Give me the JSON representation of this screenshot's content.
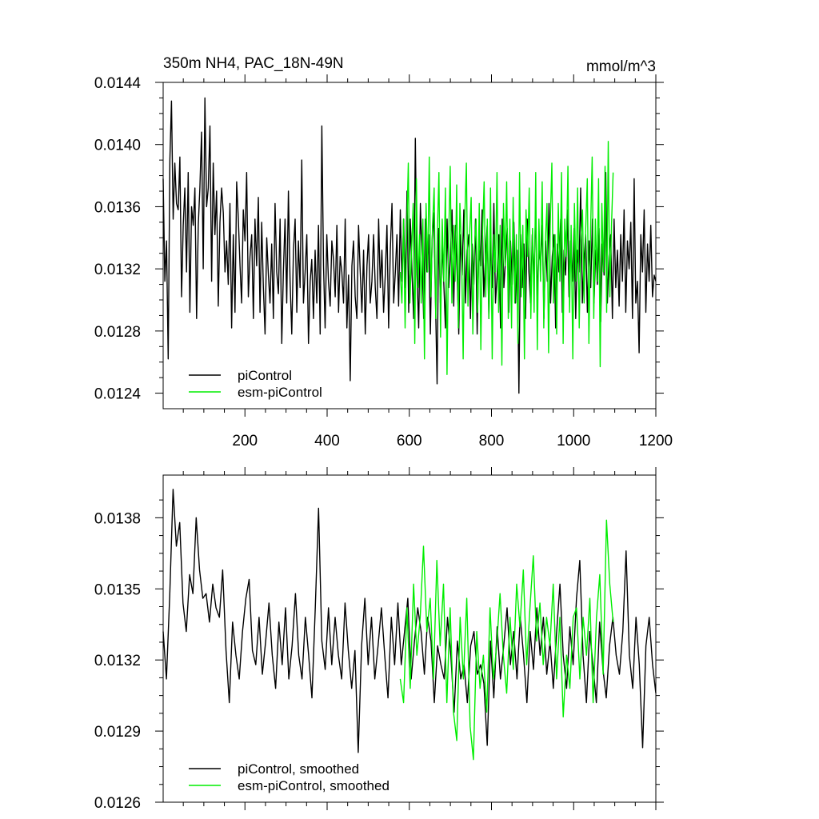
{
  "chart_data": [
    {
      "type": "line",
      "title_left": "350m NH4, PAC_18N-49N",
      "title_right": "mmol/m^3",
      "xlim": [
        1,
        1200
      ],
      "ylim": [
        0.0123,
        0.0144
      ],
      "x_ticks": [
        200,
        400,
        600,
        800,
        1000,
        1200
      ],
      "x_tick_labels": [
        "200",
        "400",
        "600",
        "800",
        "1000",
        "1200"
      ],
      "y_ticks": [
        0.0124,
        0.0128,
        0.0132,
        0.0136,
        0.014,
        0.0144
      ],
      "y_tick_labels": [
        "0.0124",
        "0.0128",
        "0.0132",
        "0.0136",
        "0.0140",
        "0.0144"
      ],
      "legend_position": "bottom-left",
      "series": [
        {
          "name": "piControl",
          "color": "#000000",
          "x_range": [
            1,
            1200
          ],
          "sample_step": 4,
          "values": [
            0.01378,
            0.01312,
            0.01338,
            0.01262,
            0.0139,
            0.01428,
            0.01352,
            0.01388,
            0.01362,
            0.01358,
            0.01392,
            0.01302,
            0.01348,
            0.01372,
            0.01318,
            0.01382,
            0.01292,
            0.0136,
            0.01348,
            0.01372,
            0.01288,
            0.01348,
            0.01372,
            0.01408,
            0.0132,
            0.0143,
            0.0136,
            0.01372,
            0.01412,
            0.01312,
            0.01388,
            0.01342,
            0.0137,
            0.01296,
            0.0135,
            0.01372,
            0.01356,
            0.01318,
            0.01338,
            0.0131,
            0.01362,
            0.01282,
            0.01342,
            0.01292,
            0.01376,
            0.01352,
            0.01322,
            0.01298,
            0.01358,
            0.01338,
            0.01382,
            0.01302,
            0.01328,
            0.01342,
            0.01288,
            0.01352,
            0.01322,
            0.01366,
            0.01292,
            0.0135,
            0.01308,
            0.01278,
            0.0134,
            0.01316,
            0.01298,
            0.01336,
            0.01288,
            0.01362,
            0.01318,
            0.01304,
            0.01352,
            0.01272,
            0.01318,
            0.01352,
            0.01298,
            0.0137,
            0.01312,
            0.01278,
            0.01332,
            0.01352,
            0.01292,
            0.01338,
            0.01308,
            0.0139,
            0.01298,
            0.01318,
            0.01342,
            0.01272,
            0.01312,
            0.01326,
            0.01288,
            0.01332,
            0.01298,
            0.01348,
            0.01278,
            0.01412,
            0.01322,
            0.01282,
            0.01342,
            0.01312,
            0.01296,
            0.01338,
            0.01326,
            0.01302,
            0.01348,
            0.01292,
            0.01328,
            0.01318,
            0.01298,
            0.01352,
            0.01282,
            0.01316,
            0.01248,
            0.01322,
            0.01338,
            0.01302,
            0.01288,
            0.01348,
            0.01318,
            0.01292,
            0.01332,
            0.01278,
            0.01322,
            0.01342,
            0.01298,
            0.01312,
            0.01342,
            0.01308,
            0.01288,
            0.01352,
            0.01308,
            0.01332,
            0.01292,
            0.01316,
            0.01348,
            0.01282,
            0.01332,
            0.01362,
            0.01298,
            0.01318,
            0.01342,
            0.01296,
            0.01358,
            0.01312,
            0.01352,
            0.01308,
            0.0137,
            0.01292,
            0.01352,
            0.01318,
            0.01288,
            0.01404,
            0.01316,
            0.01282,
            0.01362,
            0.01328,
            0.01288,
            0.01352,
            0.01318,
            0.01342,
            0.01278,
            0.01338,
            0.01356,
            0.01302,
            0.01246,
            0.01346,
            0.01298,
            0.01336,
            0.01312,
            0.01282,
            0.01352,
            0.01308,
            0.0133,
            0.01358,
            0.01296,
            0.01348,
            0.01318,
            0.01278,
            0.01342,
            0.01316,
            0.01358,
            0.01298,
            0.01332,
            0.01342,
            0.01288,
            0.01336,
            0.0131,
            0.01352,
            0.01278,
            0.01332,
            0.01322,
            0.01358,
            0.01302,
            0.01328,
            0.01348,
            0.01288,
            0.01338,
            0.01308,
            0.01362,
            0.01298,
            0.01316,
            0.01342,
            0.01282,
            0.01352,
            0.01308,
            0.01326,
            0.01346,
            0.01292,
            0.01338,
            0.0131,
            0.0135,
            0.01298,
            0.01332,
            0.0124,
            0.01342,
            0.01308,
            0.01336,
            0.01288,
            0.01352,
            0.01318,
            0.01298,
            0.01342,
            0.01312,
            0.01358,
            0.01302,
            0.01332,
            0.01322,
            0.01348,
            0.01288,
            0.01338,
            0.01312,
            0.01362,
            0.01298,
            0.01328,
            0.01342,
            0.01282,
            0.01336,
            0.01318,
            0.01352,
            0.01292,
            0.01332,
            0.01316,
            0.01358,
            0.01302,
            0.01338,
            0.01312,
            0.01346,
            0.01288,
            0.01332,
            0.01318,
            0.01372,
            0.01298,
            0.01326,
            0.01342,
            0.01292,
            0.01338,
            0.01308,
            0.01352,
            0.01298,
            0.01332,
            0.0131,
            0.01346,
            0.01286,
            0.01336,
            0.01316,
            0.01382,
            0.01298,
            0.01328,
            0.01342,
            0.01288,
            0.01352,
            0.01308,
            0.01332,
            0.01296,
            0.01342,
            0.01312,
            0.01358,
            0.01292,
            0.01338,
            0.0132,
            0.0135,
            0.01288,
            0.01378,
            0.01298,
            0.01312,
            0.01266,
            0.01342,
            0.01318,
            0.01358,
            0.01292,
            0.01336,
            0.01312,
            0.01348,
            0.01302,
            0.01316,
            0.01312
          ]
        },
        {
          "name": "esm-piControl",
          "color": "#00ee00",
          "x_range": [
            578,
            1096
          ],
          "sample_step": 4,
          "values": [
            0.01318,
            0.01298,
            0.01352,
            0.01282,
            0.01342,
            0.01388,
            0.01298,
            0.01332,
            0.01362,
            0.01272,
            0.01378,
            0.01308,
            0.01342,
            0.01298,
            0.01352,
            0.01262,
            0.01362,
            0.01318,
            0.01392,
            0.01302,
            0.01348,
            0.01372,
            0.01288,
            0.01342,
            0.01382,
            0.01276,
            0.01352,
            0.01312,
            0.01372,
            0.01252,
            0.01338,
            0.01386,
            0.01298,
            0.01348,
            0.01312,
            0.01374,
            0.01282,
            0.01362,
            0.01332,
            0.01262,
            0.01352,
            0.01388,
            0.01296,
            0.01342,
            0.01366,
            0.01278,
            0.01332,
            0.01352,
            0.01292,
            0.01362,
            0.01268,
            0.01342,
            0.01376,
            0.01302,
            0.01352,
            0.01288,
            0.01372,
            0.01262,
            0.01342,
            0.01318,
            0.01382,
            0.01292,
            0.01348,
            0.01258,
            0.01362,
            0.01322,
            0.01376,
            0.01288,
            0.01352,
            0.01282,
            0.01366,
            0.01298,
            0.01342,
            0.01272,
            0.01382,
            0.01302,
            0.01348,
            0.01262,
            0.01358,
            0.01328,
            0.01372,
            0.01288,
            0.01346,
            0.01292,
            0.01382,
            0.01268,
            0.01352,
            0.01312,
            0.01376,
            0.01282,
            0.01338,
            0.01362,
            0.01266,
            0.01348,
            0.01388,
            0.01298,
            0.01342,
            0.01278,
            0.01362,
            0.01312,
            0.01382,
            0.01272,
            0.01352,
            0.01328,
            0.01386,
            0.01292,
            0.01348,
            0.01262,
            0.01362,
            0.01312,
            0.01372,
            0.01282,
            0.01338,
            0.01358,
            0.01298,
            0.01346,
            0.01378,
            0.01272,
            0.01342,
            0.01392,
            0.01288,
            0.01352,
            0.01312,
            0.01378,
            0.01257,
            0.01362,
            0.01318,
            0.01386,
            0.01292,
            0.01402,
            0.01302,
            0.01348,
            0.01382
          ]
        }
      ]
    },
    {
      "type": "line",
      "xlim": [
        1,
        1200
      ],
      "ylim": [
        0.0126,
        0.01398
      ],
      "x_ticks": [
        200,
        400,
        600,
        800,
        1000,
        1200
      ],
      "y_ticks": [
        0.0126,
        0.0129,
        0.0132,
        0.0135,
        0.0138
      ],
      "y_tick_labels": [
        "0.0126",
        "0.0129",
        "0.0132",
        "0.0135",
        "0.0138"
      ],
      "legend_position": "bottom-left",
      "series": [
        {
          "name": "piControl, smoothed",
          "color": "#000000",
          "x_range": [
            1,
            1200
          ],
          "sample_step": 8,
          "values": [
            0.01332,
            0.01312,
            0.01348,
            0.01392,
            0.01368,
            0.01378,
            0.01344,
            0.01332,
            0.01356,
            0.01348,
            0.0138,
            0.01358,
            0.01346,
            0.01348,
            0.01336,
            0.01352,
            0.01342,
            0.01338,
            0.01358,
            0.01324,
            0.01302,
            0.01336,
            0.01322,
            0.01312,
            0.01332,
            0.01346,
            0.01354,
            0.01324,
            0.01318,
            0.01338,
            0.01314,
            0.01328,
            0.01344,
            0.01322,
            0.01308,
            0.01336,
            0.01318,
            0.01342,
            0.01312,
            0.01326,
            0.01348,
            0.01322,
            0.01312,
            0.01338,
            0.01322,
            0.01304,
            0.01342,
            0.01384,
            0.01328,
            0.01316,
            0.01342,
            0.01318,
            0.01338,
            0.01322,
            0.01312,
            0.01344,
            0.01324,
            0.01308,
            0.01324,
            0.01281,
            0.01326,
            0.01346,
            0.01318,
            0.01338,
            0.01312,
            0.01326,
            0.01342,
            0.01322,
            0.01304,
            0.01338,
            0.01318,
            0.01344,
            0.01318,
            0.01332,
            0.01346,
            0.01312,
            0.01328,
            0.01342,
            0.01332,
            0.01314,
            0.01338,
            0.01328,
            0.01302,
            0.01326,
            0.01318,
            0.01312,
            0.01338,
            0.01322,
            0.01298,
            0.01328,
            0.01312,
            0.01318,
            0.01302,
            0.01326,
            0.01332,
            0.01314,
            0.01318,
            0.0131,
            0.01284,
            0.01328,
            0.01304,
            0.01334,
            0.01312,
            0.01326,
            0.01342,
            0.01318,
            0.01332,
            0.01312,
            0.01338,
            0.01322,
            0.01302,
            0.01332,
            0.01316,
            0.01342,
            0.01322,
            0.01338,
            0.01314,
            0.01328,
            0.01308,
            0.01332,
            0.01352,
            0.01322,
            0.01308,
            0.01334,
            0.01318,
            0.01346,
            0.01362,
            0.01322,
            0.01302,
            0.01332,
            0.01318,
            0.01302,
            0.01336,
            0.01316,
            0.01304,
            0.01326,
            0.01338,
            0.01322,
            0.01314,
            0.01332,
            0.01366,
            0.01322,
            0.01308,
            0.01338,
            0.01318,
            0.01283,
            0.01326,
            0.01338,
            0.01318,
            0.01306
          ]
        },
        {
          "name": "esm-piControl, smoothed",
          "color": "#00ee00",
          "x_range": [
            578,
            1096
          ],
          "sample_step": 8,
          "values": [
            0.01312,
            0.01302,
            0.01342,
            0.01308,
            0.01352,
            0.01322,
            0.01338,
            0.01368,
            0.01332,
            0.01346,
            0.01312,
            0.01362,
            0.01326,
            0.01352,
            0.01302,
            0.01342,
            0.01298,
            0.01286,
            0.01338,
            0.01312,
            0.01346,
            0.01292,
            0.01278,
            0.01332,
            0.01308,
            0.01322,
            0.01298,
            0.01342,
            0.01312,
            0.01326,
            0.01348,
            0.01322,
            0.01306,
            0.01338,
            0.01316,
            0.01352,
            0.01334,
            0.01358,
            0.01318,
            0.01342,
            0.01364,
            0.01328,
            0.01344,
            0.01318,
            0.01338,
            0.01326,
            0.01352,
            0.01312,
            0.01338,
            0.01296,
            0.01322,
            0.01308,
            0.01338,
            0.01342,
            0.01312,
            0.01338,
            0.01322,
            0.01346,
            0.01302,
            0.01338,
            0.01356,
            0.01314,
            0.01379,
            0.01352,
            0.01336
          ]
        }
      ]
    }
  ]
}
